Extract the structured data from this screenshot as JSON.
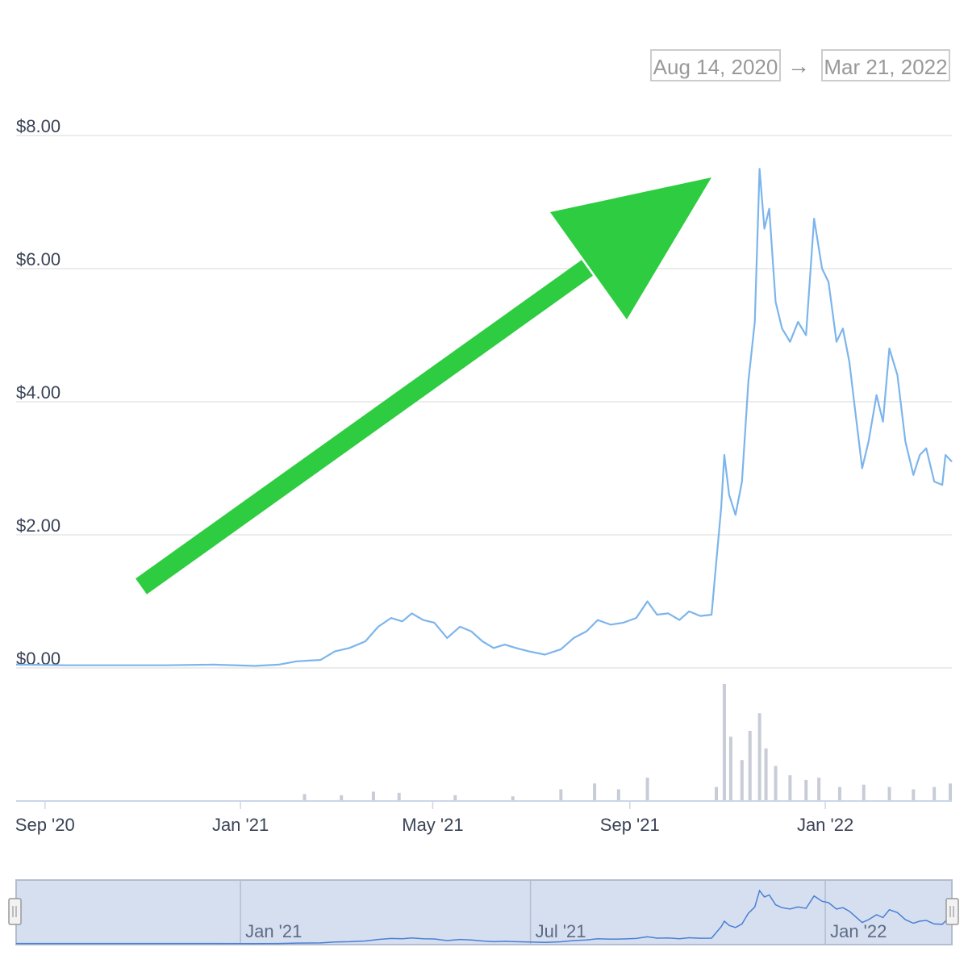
{
  "range_selector": {
    "from": "Aug 14, 2020",
    "arrow": "→",
    "to": "Mar 21, 2022"
  },
  "chart_data": {
    "type": "line",
    "title": "",
    "xlabel": "",
    "ylabel": "",
    "ylim": [
      0,
      8
    ],
    "y_ticks": [
      "$0.00",
      "$2.00",
      "$4.00",
      "$6.00",
      "$8.00"
    ],
    "x_ticks": [
      "Sep '20",
      "Jan '21",
      "May '21",
      "Sep '21",
      "Jan '22"
    ],
    "grid": true,
    "line_color": "#7cb5ec",
    "volume_color": "#c8ccd6",
    "annotation": {
      "type": "arrow",
      "direction": "up-right",
      "color": "#2ecc40"
    },
    "series": [
      {
        "values": [
          [
            "2020-08-14",
            0.05
          ],
          [
            "2020-09-15",
            0.04
          ],
          [
            "2020-10-15",
            0.04
          ],
          [
            "2020-11-15",
            0.04
          ],
          [
            "2020-12-15",
            0.05
          ],
          [
            "2021-01-10",
            0.03
          ],
          [
            "2021-01-25",
            0.05
          ],
          [
            "2021-02-05",
            0.1
          ],
          [
            "2021-02-20",
            0.12
          ],
          [
            "2021-03-01",
            0.25
          ],
          [
            "2021-03-10",
            0.3
          ],
          [
            "2021-03-20",
            0.4
          ],
          [
            "2021-03-28",
            0.62
          ],
          [
            "2021-04-05",
            0.75
          ],
          [
            "2021-04-12",
            0.7
          ],
          [
            "2021-04-18",
            0.82
          ],
          [
            "2021-04-25",
            0.72
          ],
          [
            "2021-05-02",
            0.68
          ],
          [
            "2021-05-10",
            0.45
          ],
          [
            "2021-05-18",
            0.62
          ],
          [
            "2021-05-25",
            0.55
          ],
          [
            "2021-06-01",
            0.4
          ],
          [
            "2021-06-08",
            0.3
          ],
          [
            "2021-06-15",
            0.35
          ],
          [
            "2021-06-22",
            0.3
          ],
          [
            "2021-06-30",
            0.25
          ],
          [
            "2021-07-10",
            0.2
          ],
          [
            "2021-07-20",
            0.28
          ],
          [
            "2021-07-28",
            0.45
          ],
          [
            "2021-08-05",
            0.55
          ],
          [
            "2021-08-12",
            0.72
          ],
          [
            "2021-08-20",
            0.65
          ],
          [
            "2021-08-28",
            0.68
          ],
          [
            "2021-09-05",
            0.75
          ],
          [
            "2021-09-12",
            1.0
          ],
          [
            "2021-09-18",
            0.8
          ],
          [
            "2021-09-25",
            0.82
          ],
          [
            "2021-10-02",
            0.72
          ],
          [
            "2021-10-08",
            0.85
          ],
          [
            "2021-10-15",
            0.78
          ],
          [
            "2021-10-22",
            0.8
          ],
          [
            "2021-10-25",
            1.6
          ],
          [
            "2021-10-28",
            2.4
          ],
          [
            "2021-10-30",
            3.2
          ],
          [
            "2021-11-02",
            2.6
          ],
          [
            "2021-11-06",
            2.3
          ],
          [
            "2021-11-10",
            2.8
          ],
          [
            "2021-11-14",
            4.3
          ],
          [
            "2021-11-18",
            5.2
          ],
          [
            "2021-11-21",
            7.5
          ],
          [
            "2021-11-24",
            6.6
          ],
          [
            "2021-11-27",
            6.9
          ],
          [
            "2021-12-01",
            5.5
          ],
          [
            "2021-12-05",
            5.1
          ],
          [
            "2021-12-10",
            4.9
          ],
          [
            "2021-12-15",
            5.2
          ],
          [
            "2021-12-20",
            5.0
          ],
          [
            "2021-12-25",
            6.75
          ],
          [
            "2021-12-30",
            6.0
          ],
          [
            "2022-01-03",
            5.8
          ],
          [
            "2022-01-08",
            4.9
          ],
          [
            "2022-01-12",
            5.1
          ],
          [
            "2022-01-16",
            4.6
          ],
          [
            "2022-01-20",
            3.8
          ],
          [
            "2022-01-24",
            3.0
          ],
          [
            "2022-01-28",
            3.4
          ],
          [
            "2022-02-02",
            4.1
          ],
          [
            "2022-02-06",
            3.7
          ],
          [
            "2022-02-10",
            4.8
          ],
          [
            "2022-02-15",
            4.4
          ],
          [
            "2022-02-20",
            3.4
          ],
          [
            "2022-02-25",
            2.9
          ],
          [
            "2022-03-01",
            3.2
          ],
          [
            "2022-03-05",
            3.3
          ],
          [
            "2022-03-10",
            2.8
          ],
          [
            "2022-03-15",
            2.75
          ],
          [
            "2022-03-17",
            3.2
          ],
          [
            "2022-03-21",
            3.1
          ]
        ]
      }
    ],
    "volume": [
      [
        "2021-02-10",
        0.06
      ],
      [
        "2021-03-05",
        0.05
      ],
      [
        "2021-03-25",
        0.08
      ],
      [
        "2021-04-10",
        0.07
      ],
      [
        "2021-05-15",
        0.05
      ],
      [
        "2021-06-20",
        0.04
      ],
      [
        "2021-07-20",
        0.1
      ],
      [
        "2021-08-10",
        0.15
      ],
      [
        "2021-08-25",
        0.1
      ],
      [
        "2021-09-12",
        0.2
      ],
      [
        "2021-10-25",
        0.12
      ],
      [
        "2021-10-30",
        1.0
      ],
      [
        "2021-11-03",
        0.55
      ],
      [
        "2021-11-10",
        0.35
      ],
      [
        "2021-11-15",
        0.6
      ],
      [
        "2021-11-21",
        0.75
      ],
      [
        "2021-11-25",
        0.45
      ],
      [
        "2021-12-01",
        0.3
      ],
      [
        "2021-12-10",
        0.22
      ],
      [
        "2021-12-20",
        0.18
      ],
      [
        "2021-12-28",
        0.2
      ],
      [
        "2022-01-10",
        0.12
      ],
      [
        "2022-01-25",
        0.14
      ],
      [
        "2022-02-10",
        0.12
      ],
      [
        "2022-02-25",
        0.1
      ],
      [
        "2022-03-10",
        0.12
      ],
      [
        "2022-03-20",
        0.15
      ]
    ]
  },
  "navigator": {
    "labels": [
      "Jan '21",
      "Jul '21",
      "Jan '22"
    ],
    "handle_left_icon": "grip-icon",
    "handle_right_icon": "grip-icon"
  }
}
